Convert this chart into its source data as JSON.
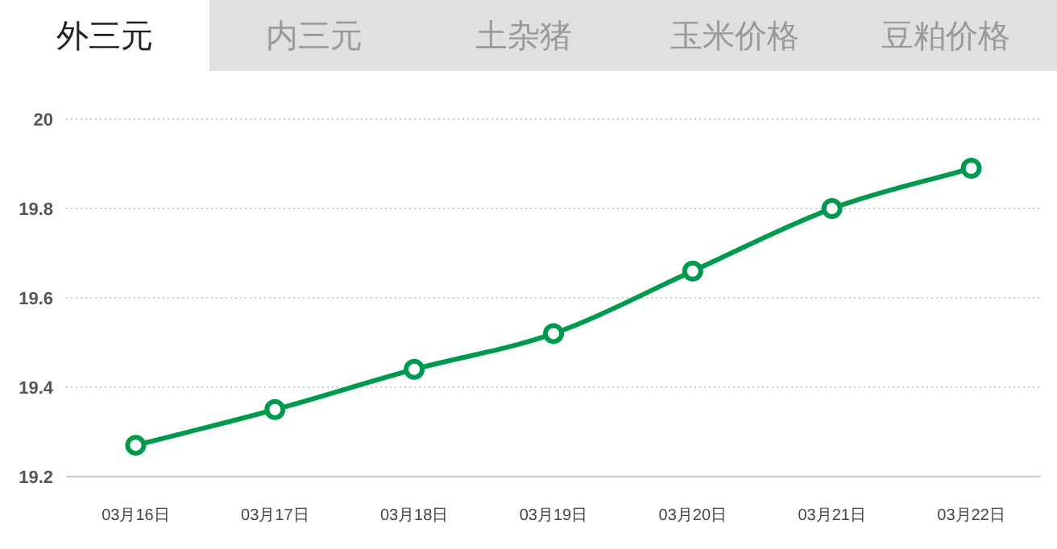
{
  "chart_data": {
    "type": "line",
    "title": "外三元",
    "annotations": [
      "内三元",
      "土杂猪",
      "玉米价格",
      "豆粕价格"
    ],
    "categories": [
      "03月16日",
      "03月17日",
      "03月18日",
      "03月19日",
      "03月20日",
      "03月21日",
      "03月22日"
    ],
    "series": [
      {
        "color": "#009a4e",
        "values": [
          19.27,
          19.35,
          19.44,
          19.52,
          19.66,
          19.8,
          19.89
        ]
      }
    ],
    "ylim": [
      19.2,
      20
    ],
    "yticks": [
      19.2,
      19.4,
      19.6,
      19.8,
      20
    ],
    "grid": "y",
    "marker": "circle",
    "line_style": "solid"
  }
}
